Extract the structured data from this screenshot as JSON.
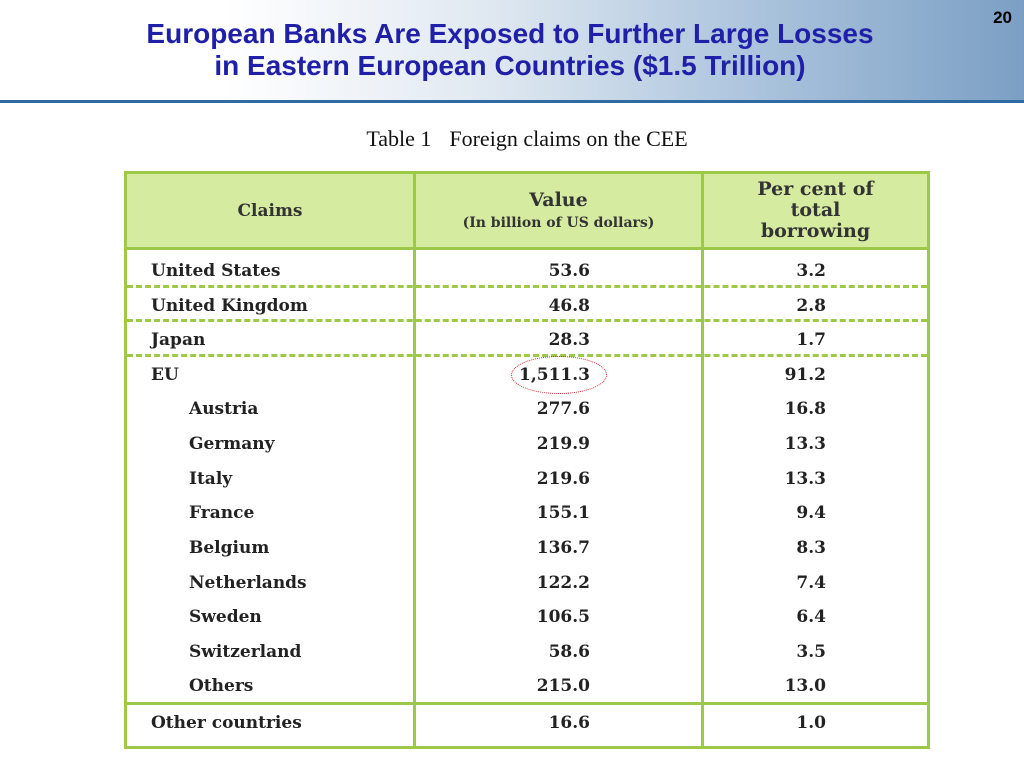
{
  "header": {
    "title_line1": "European Banks Are Exposed to Further Large Losses",
    "title_line2": "in Eastern European Countries ($1.5 Trillion)",
    "page_number": "20"
  },
  "table": {
    "caption_number": "Table 1",
    "caption_text": "Foreign claims on the CEE",
    "columns": {
      "claims": "Claims",
      "value_main": "Value",
      "value_sub": "(In billion of US dollars)",
      "pct_line1": "Per cent of",
      "pct_line2": "total",
      "pct_line3": "borrowing"
    },
    "rows": [
      {
        "name": "United States",
        "value": "53.6",
        "pct": "3.2"
      },
      {
        "name": "United Kingdom",
        "value": "46.8",
        "pct": "2.8"
      },
      {
        "name": "Japan",
        "value": "28.3",
        "pct": "1.7"
      },
      {
        "name": "EU",
        "value": "1,511.3",
        "pct": "91.2"
      },
      {
        "name": "Austria",
        "value": "277.6",
        "pct": "16.8"
      },
      {
        "name": "Germany",
        "value": "219.9",
        "pct": "13.3"
      },
      {
        "name": "Italy",
        "value": "219.6",
        "pct": "13.3"
      },
      {
        "name": "France",
        "value": "155.1",
        "pct": "9.4"
      },
      {
        "name": "Belgium",
        "value": "136.7",
        "pct": "8.3"
      },
      {
        "name": "Netherlands",
        "value": "122.2",
        "pct": "7.4"
      },
      {
        "name": "Sweden",
        "value": "106.5",
        "pct": "6.4"
      },
      {
        "name": "Switzerland",
        "value": "58.6",
        "pct": "3.5"
      },
      {
        "name": "Others",
        "value": "215.0",
        "pct": "13.0"
      },
      {
        "name": "Other countries",
        "value": "16.6",
        "pct": "1.0"
      }
    ],
    "highlight_color": "#d01c1c",
    "border_color": "#9dc848",
    "header_fill": "#d5eba0"
  }
}
